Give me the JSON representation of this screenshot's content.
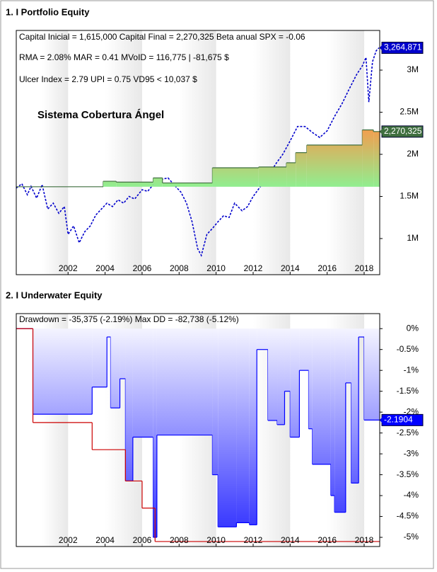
{
  "chart_data": [
    {
      "type": "line",
      "title": "1. I Portfolio Equity",
      "annotations": [
        "Capital Inicial = 1,615,000  Capital Final = 2,270,325  Beta anual SPX = -0.06",
        "RMA = 2.08%   MAR = 0.41   MVoID = 116,775 | -81,675 $",
        "Ulcer Index = 2.79   UPI = 0.75   VD95 < 10,037 $"
      ],
      "subtitle": "Sistema Cobertura Ángel",
      "xlim": [
        1999.2,
        2018.84
      ],
      "xticks": [
        2002,
        2004,
        2006,
        2008,
        2010,
        2012,
        2014,
        2016,
        2018
      ],
      "ylim": [
        571000,
        3471000
      ],
      "yticks": [
        {
          "value": 1000000,
          "label": "1M"
        },
        {
          "value": 1500000,
          "label": "1.5M"
        },
        {
          "value": 2000000,
          "label": "2M"
        },
        {
          "value": 2500000,
          "label": "2.5M"
        },
        {
          "value": 3000000,
          "label": "3M"
        }
      ],
      "series": [
        {
          "color": "#0000cc",
          "dashed": true,
          "step": false,
          "fill": false,
          "last_label": "3,264,871",
          "x": [
            1999.2,
            1999.5,
            1999.8,
            2000.0,
            2000.3,
            2000.6,
            2000.9,
            2001.2,
            2001.5,
            2001.8,
            2002.0,
            2002.3,
            2002.6,
            2002.9,
            2003.2,
            2003.5,
            2003.8,
            2004.1,
            2004.4,
            2004.7,
            2005.0,
            2005.3,
            2005.6,
            2006.0,
            2006.3,
            2006.6,
            2007.0,
            2007.4,
            2007.8,
            2008.1,
            2008.4,
            2008.7,
            2009.0,
            2009.2,
            2009.5,
            2009.8,
            2010.1,
            2010.4,
            2010.7,
            2011.0,
            2011.4,
            2011.7,
            2012.0,
            2012.4,
            2012.8,
            2013.2,
            2013.6,
            2014.0,
            2014.4,
            2014.8,
            2015.2,
            2015.6,
            2016.0,
            2016.4,
            2016.8,
            2017.2,
            2017.6,
            2017.9,
            2018.1,
            2018.25,
            2018.45,
            2018.65,
            2018.8
          ],
          "values": [
            1600000,
            1650000,
            1520000,
            1620000,
            1480000,
            1640000,
            1350000,
            1420000,
            1300000,
            1380000,
            1050000,
            1150000,
            950000,
            1080000,
            1150000,
            1280000,
            1350000,
            1420000,
            1380000,
            1460000,
            1420000,
            1500000,
            1470000,
            1580000,
            1560000,
            1640000,
            1700000,
            1720000,
            1620000,
            1550000,
            1420000,
            1200000,
            880000,
            800000,
            1050000,
            1120000,
            1200000,
            1270000,
            1250000,
            1420000,
            1330000,
            1380000,
            1500000,
            1620000,
            1720000,
            1880000,
            2000000,
            2160000,
            2330000,
            2330000,
            2260000,
            2200000,
            2280000,
            2450000,
            2600000,
            2780000,
            2950000,
            3050000,
            3150000,
            2620000,
            3100000,
            3230000,
            3264871
          ]
        },
        {
          "color": "#3f6f3f",
          "dashed": false,
          "step": true,
          "fill": true,
          "last_label": "2,270,325",
          "x": [
            1999.2,
            2003.9,
            2004.6,
            2006.6,
            2007.1,
            2009.8,
            2012.3,
            2013.8,
            2014.3,
            2014.9,
            2017.9,
            2018.5
          ],
          "values": [
            1615000,
            1680000,
            1670000,
            1720000,
            1660000,
            1840000,
            1850000,
            1900000,
            2020000,
            2110000,
            2290000,
            2270325
          ]
        }
      ]
    },
    {
      "type": "area",
      "title": "2. I Underwater Equity",
      "annotations": [
        "Drawdown = -35,375 (-2.19%)     Max DD = -82,738 (-5.12%)"
      ],
      "xlim": [
        1999.2,
        2018.84
      ],
      "xticks": [
        2002,
        2004,
        2006,
        2008,
        2010,
        2012,
        2014,
        2016,
        2018
      ],
      "ylim": [
        -5.22,
        0.36
      ],
      "yticks": [
        {
          "value": 0,
          "label": "0%"
        },
        {
          "value": -0.5,
          "label": "-0.5%"
        },
        {
          "value": -1,
          "label": "-1%"
        },
        {
          "value": -1.5,
          "label": "-1.5%"
        },
        {
          "value": -2,
          "label": "-2%"
        },
        {
          "value": -2.5,
          "label": "-2.5%"
        },
        {
          "value": -3,
          "label": "-3%"
        },
        {
          "value": -3.5,
          "label": "-3.5%"
        },
        {
          "value": -4,
          "label": "-4%"
        },
        {
          "value": -4.5,
          "label": "-4.5%"
        },
        {
          "value": -5,
          "label": "-5%"
        }
      ],
      "series": [
        {
          "color": "#0000ff",
          "step": true,
          "fill": true,
          "show_last": true,
          "x": [
            1999.2,
            2000.1,
            2003.3,
            2004.1,
            2004.3,
            2004.8,
            2005.1,
            2005.5,
            2006.6,
            2006.8,
            2009.8,
            2010.1,
            2011.1,
            2011.8,
            2012.2,
            2012.8,
            2013.3,
            2013.7,
            2014.0,
            2014.5,
            2015.0,
            2015.2,
            2016.2,
            2016.4,
            2017.0,
            2017.3,
            2017.7,
            2018.0
          ],
          "values": [
            0,
            -2.05,
            -1.4,
            -0.2,
            -1.9,
            -1.2,
            -3.65,
            -2.6,
            -5.0,
            -2.55,
            -3.5,
            -4.75,
            -4.65,
            -4.7,
            -0.5,
            -2.2,
            -2.3,
            -1.5,
            -2.6,
            -1.0,
            -2.4,
            -3.25,
            -4.0,
            -4.4,
            -1.3,
            -3.7,
            -0.2,
            -2.1904
          ]
        },
        {
          "color": "#cc0000",
          "step": true,
          "fill": false,
          "x": [
            1999.2,
            2000.1,
            2003.3,
            2005.1,
            2006.0,
            2006.7
          ],
          "values": [
            0,
            -2.25,
            -2.9,
            -3.65,
            -4.3,
            -5.1
          ]
        }
      ]
    }
  ]
}
